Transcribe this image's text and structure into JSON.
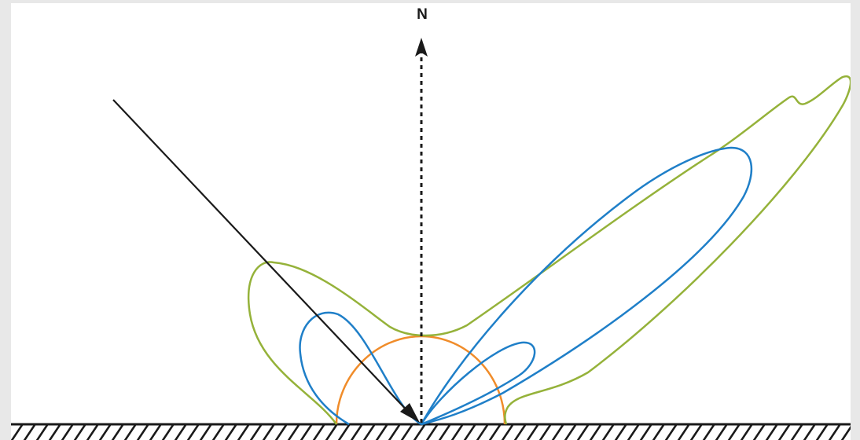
{
  "diagram": {
    "normal_label": "N",
    "colors": {
      "background": "#ffffff",
      "frame": "#e8e8e8",
      "ink": "#1a1a1a",
      "green_lobe": "#95b23a",
      "blue_lobe": "#1f7fc8",
      "orange_lobe": "#f08c2a"
    },
    "elements": {
      "incident_ray": "incident-ray",
      "surface_normal": "surface-normal-arrow",
      "surface": "hatched-surface"
    }
  }
}
